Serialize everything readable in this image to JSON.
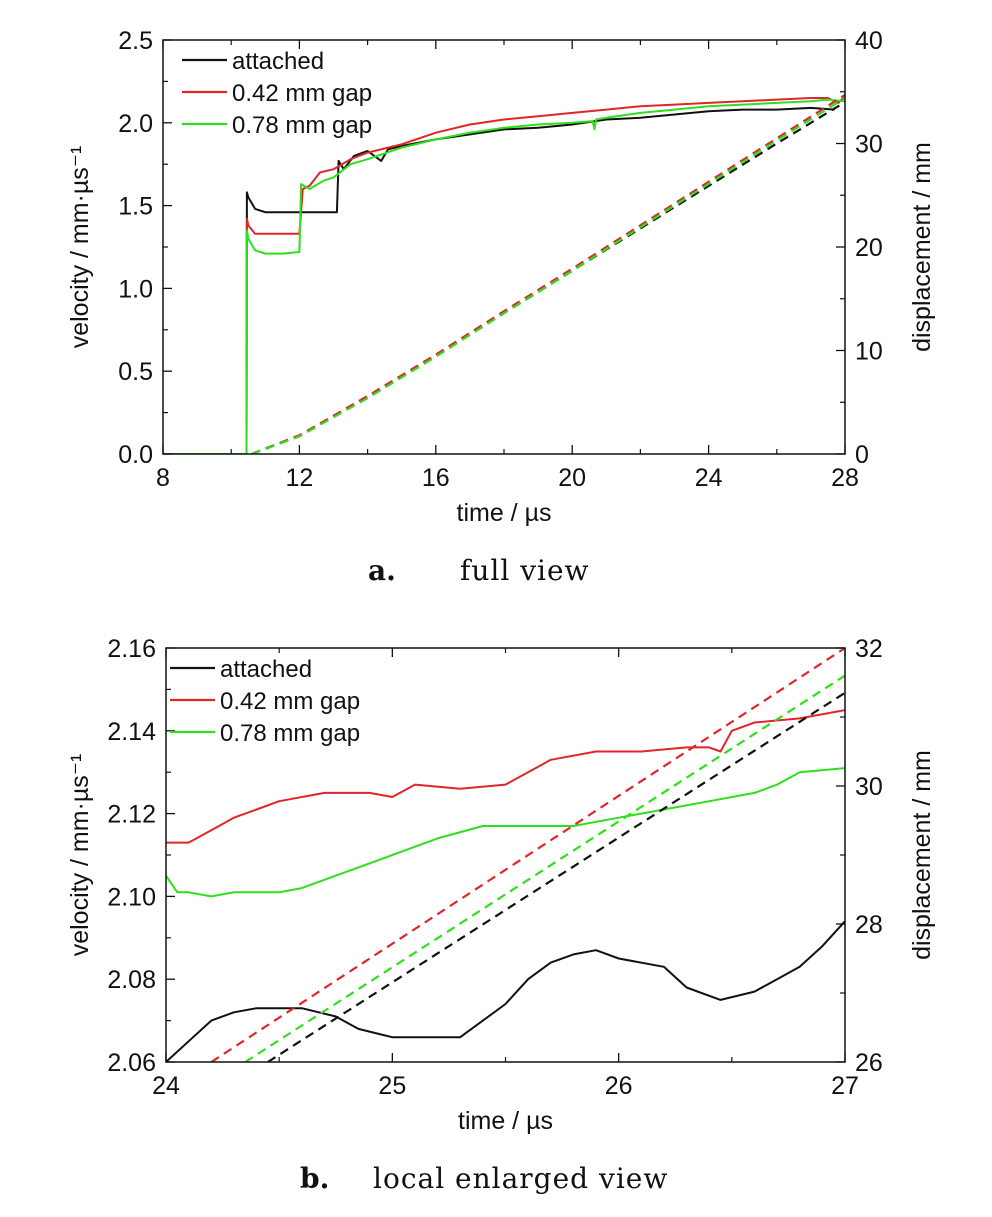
{
  "panels": [
    {
      "caption_letter": "a.",
      "caption_text": "full view",
      "legend_entries": [
        "attached",
        "0.42 mm gap",
        "0.78 mm gap"
      ]
    },
    {
      "caption_letter": "b.",
      "caption_text": "local enlarged view",
      "legend_entries": [
        "attached",
        "0.42 mm gap",
        "0.78 mm gap"
      ]
    }
  ],
  "chart_data": [
    {
      "type": "line",
      "xlabel": "time / µs",
      "ylabel": "velocity / mm·µs⁻¹",
      "y2label": "displacement / mm",
      "xlim": [
        8,
        28
      ],
      "ylim": [
        0,
        2.5
      ],
      "y2lim": [
        0,
        40
      ],
      "x_ticks": [
        8,
        12,
        16,
        20,
        24,
        28
      ],
      "x_tick_labels": [
        "8",
        "12",
        "16",
        "20",
        "24",
        "28"
      ],
      "y_ticks": [
        0,
        0.5,
        1.0,
        1.5,
        2.0,
        2.5
      ],
      "y_tick_labels": [
        "0.0",
        "0.5",
        "1.0",
        "1.5",
        "2.0",
        "2.5"
      ],
      "y2_ticks": [
        0,
        10,
        20,
        30,
        40
      ],
      "y2_tick_labels": [
        "0",
        "10",
        "20",
        "30",
        "40"
      ],
      "legend_position": "top-left",
      "grid": false,
      "series": [
        {
          "name": "attached",
          "color": "#111111",
          "axis": "left",
          "style": "solid",
          "x": [
            8,
            10.45,
            10.46,
            10.5,
            10.7,
            11,
            12,
            13,
            13.1,
            13.15,
            13.3,
            13.6,
            14,
            14.4,
            14.6,
            15,
            16,
            17,
            18,
            19,
            20,
            21,
            22,
            23,
            24,
            25,
            26,
            27,
            27.7
          ],
          "y": [
            0,
            0,
            1.58,
            1.55,
            1.48,
            1.46,
            1.46,
            1.46,
            1.46,
            1.77,
            1.72,
            1.8,
            1.83,
            1.77,
            1.84,
            1.86,
            1.9,
            1.93,
            1.96,
            1.97,
            1.99,
            2.02,
            2.03,
            2.05,
            2.07,
            2.08,
            2.08,
            2.09,
            2.08
          ]
        },
        {
          "name": "0.42 mm gap",
          "color": "#e0262b",
          "axis": "left",
          "style": "solid",
          "x": [
            8,
            10.45,
            10.46,
            10.5,
            10.7,
            11,
            12,
            12.1,
            12.3,
            12.6,
            13,
            13.5,
            14,
            15,
            16,
            17,
            18,
            19,
            20,
            21,
            22,
            23,
            24,
            25,
            26,
            27,
            27.5,
            27.8,
            28
          ],
          "y": [
            0,
            0,
            1.42,
            1.38,
            1.33,
            1.33,
            1.33,
            1.6,
            1.62,
            1.7,
            1.72,
            1.78,
            1.82,
            1.87,
            1.94,
            1.99,
            2.02,
            2.04,
            2.06,
            2.08,
            2.1,
            2.11,
            2.12,
            2.13,
            2.14,
            2.15,
            2.15,
            2.12,
            2.16
          ]
        },
        {
          "name": "0.78 mm gap",
          "color": "#2ee01c",
          "axis": "left",
          "style": "solid",
          "x": [
            8,
            10.45,
            10.46,
            10.5,
            10.7,
            11,
            11.5,
            12,
            12.05,
            12.3,
            12.7,
            13,
            13.5,
            14,
            15,
            16,
            17,
            18,
            19,
            20,
            20.6,
            20.65,
            20.7,
            21,
            22,
            23,
            24,
            25,
            26,
            27,
            27.5,
            28
          ],
          "y": [
            0,
            0,
            1.35,
            1.3,
            1.23,
            1.21,
            1.21,
            1.22,
            1.63,
            1.6,
            1.65,
            1.67,
            1.75,
            1.78,
            1.85,
            1.9,
            1.94,
            1.97,
            1.99,
            2.0,
            2.01,
            1.96,
            2.02,
            2.03,
            2.06,
            2.08,
            2.1,
            2.11,
            2.12,
            2.13,
            2.14,
            2.13
          ]
        },
        {
          "name": "attached",
          "color": "#111111",
          "axis": "right",
          "style": "dashed",
          "x": [
            10.6,
            12,
            14,
            16,
            18,
            20,
            22,
            24,
            26,
            28
          ],
          "y": [
            0,
            1.8,
            5.5,
            9.5,
            13.6,
            17.7,
            21.8,
            25.9,
            30.0,
            34.0
          ]
        },
        {
          "name": "0.42 mm gap",
          "color": "#e0262b",
          "axis": "right",
          "style": "dashed",
          "x": [
            10.6,
            12,
            14,
            16,
            18,
            20,
            22,
            24,
            26,
            28
          ],
          "y": [
            0,
            1.8,
            5.6,
            9.6,
            13.8,
            17.9,
            22.1,
            26.3,
            30.5,
            34.7
          ]
        },
        {
          "name": "0.78 mm gap",
          "color": "#2ee01c",
          "axis": "right",
          "style": "dashed",
          "x": [
            10.6,
            12,
            14,
            16,
            18,
            20,
            22,
            24,
            26,
            28
          ],
          "y": [
            0,
            1.7,
            5.4,
            9.4,
            13.6,
            17.7,
            21.9,
            26.1,
            30.3,
            34.4
          ]
        }
      ]
    },
    {
      "type": "line",
      "xlabel": "time / µs",
      "ylabel": "velocity / mm·µs⁻¹",
      "y2label": "displacement / mm",
      "xlim": [
        24,
        27
      ],
      "ylim": [
        2.06,
        2.16
      ],
      "y2lim": [
        26,
        32
      ],
      "x_ticks": [
        24,
        25,
        26,
        27
      ],
      "x_tick_labels": [
        "24",
        "25",
        "26",
        "27"
      ],
      "y_ticks": [
        2.06,
        2.08,
        2.1,
        2.12,
        2.14,
        2.16
      ],
      "y_tick_labels": [
        "2.06",
        "2.08",
        "2.10",
        "2.12",
        "2.14",
        "2.16"
      ],
      "y2_ticks": [
        26,
        28,
        30,
        32
      ],
      "y2_tick_labels": [
        "26",
        "28",
        "30",
        "32"
      ],
      "legend_position": "top-left",
      "grid": false,
      "series": [
        {
          "name": "attached",
          "color": "#111111",
          "axis": "left",
          "style": "solid",
          "x": [
            24,
            24.1,
            24.2,
            24.3,
            24.4,
            24.6,
            24.75,
            24.85,
            25,
            25.1,
            25.3,
            25.4,
            25.5,
            25.6,
            25.7,
            25.8,
            25.9,
            26,
            26.2,
            26.3,
            26.45,
            26.6,
            26.7,
            26.8,
            26.9,
            27
          ],
          "y": [
            2.06,
            2.065,
            2.07,
            2.072,
            2.073,
            2.073,
            2.071,
            2.068,
            2.066,
            2.066,
            2.066,
            2.07,
            2.074,
            2.08,
            2.084,
            2.086,
            2.087,
            2.085,
            2.083,
            2.078,
            2.075,
            2.077,
            2.08,
            2.083,
            2.088,
            2.094
          ]
        },
        {
          "name": "0.42 mm gap",
          "color": "#e0262b",
          "axis": "left",
          "style": "solid",
          "x": [
            24,
            24.1,
            24.2,
            24.3,
            24.4,
            24.5,
            24.7,
            24.9,
            25,
            25.1,
            25.3,
            25.5,
            25.6,
            25.7,
            25.9,
            26.1,
            26.3,
            26.4,
            26.45,
            26.5,
            26.6,
            26.8,
            27
          ],
          "y": [
            2.113,
            2.113,
            2.116,
            2.119,
            2.121,
            2.123,
            2.125,
            2.125,
            2.124,
            2.127,
            2.126,
            2.127,
            2.13,
            2.133,
            2.135,
            2.135,
            2.136,
            2.136,
            2.135,
            2.14,
            2.142,
            2.143,
            2.145
          ]
        },
        {
          "name": "0.78 mm gap",
          "color": "#2ee01c",
          "axis": "left",
          "style": "solid",
          "x": [
            24,
            24.05,
            24.1,
            24.2,
            24.3,
            24.5,
            24.6,
            24.7,
            24.8,
            24.9,
            25,
            25.1,
            25.2,
            25.4,
            25.6,
            25.8,
            26,
            26.2,
            26.4,
            26.6,
            26.7,
            26.8,
            27
          ],
          "y": [
            2.105,
            2.101,
            2.101,
            2.1,
            2.101,
            2.101,
            2.102,
            2.104,
            2.106,
            2.108,
            2.11,
            2.112,
            2.114,
            2.117,
            2.117,
            2.117,
            2.119,
            2.121,
            2.123,
            2.125,
            2.127,
            2.13,
            2.131
          ]
        },
        {
          "name": "attached",
          "color": "#111111",
          "axis": "right",
          "style": "dashed",
          "x": [
            24.45,
            27
          ],
          "y": [
            26.0,
            31.35
          ]
        },
        {
          "name": "0.42 mm gap",
          "color": "#e0262b",
          "axis": "right",
          "style": "dashed",
          "x": [
            24.2,
            27
          ],
          "y": [
            26.0,
            32.0
          ]
        },
        {
          "name": "0.78 mm gap",
          "color": "#2ee01c",
          "axis": "right",
          "style": "dashed",
          "x": [
            24.35,
            27
          ],
          "y": [
            26.0,
            31.6
          ]
        }
      ]
    }
  ]
}
